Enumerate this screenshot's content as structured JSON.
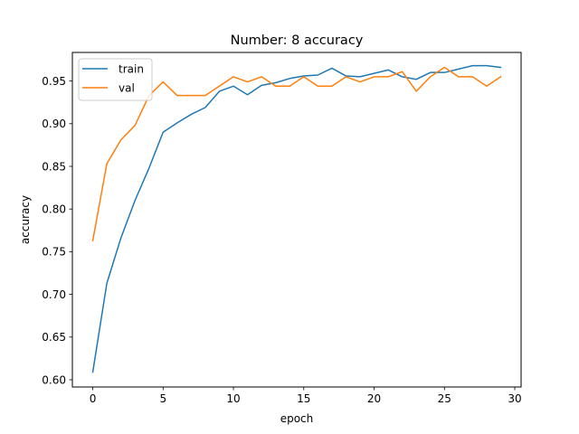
{
  "chart_data": {
    "type": "line",
    "title": "Number: 8 accuracy",
    "xlabel": "epoch",
    "ylabel": "accuracy",
    "xlim": [
      -1.45,
      30.45
    ],
    "ylim": [
      0.5915,
      0.9835
    ],
    "xticks": [
      0,
      5,
      10,
      15,
      20,
      25,
      30
    ],
    "yticks": [
      0.6,
      0.65,
      0.7,
      0.75,
      0.8,
      0.85,
      0.9,
      0.95
    ],
    "ytick_labels": [
      "0.60",
      "0.65",
      "0.70",
      "0.75",
      "0.80",
      "0.85",
      "0.90",
      "0.95"
    ],
    "grid": false,
    "legend_position": "top-left",
    "x": [
      0,
      1,
      2,
      3,
      4,
      5,
      6,
      7,
      8,
      9,
      10,
      11,
      12,
      13,
      14,
      15,
      16,
      17,
      18,
      19,
      20,
      21,
      22,
      23,
      24,
      25,
      26,
      27,
      28,
      29
    ],
    "series": [
      {
        "name": "train",
        "color": "#1f77b4",
        "values": [
          0.609,
          0.713,
          0.766,
          0.81,
          0.848,
          0.89,
          0.901,
          0.911,
          0.919,
          0.938,
          0.944,
          0.934,
          0.945,
          0.948,
          0.953,
          0.956,
          0.957,
          0.965,
          0.956,
          0.955,
          0.959,
          0.963,
          0.955,
          0.952,
          0.96,
          0.96,
          0.964,
          0.968,
          0.968,
          0.966
        ]
      },
      {
        "name": "val",
        "color": "#ff7f0e",
        "values": [
          0.763,
          0.853,
          0.881,
          0.898,
          0.933,
          0.949,
          0.933,
          0.933,
          0.933,
          0.944,
          0.955,
          0.949,
          0.955,
          0.944,
          0.944,
          0.955,
          0.944,
          0.944,
          0.955,
          0.949,
          0.955,
          0.955,
          0.961,
          0.938,
          0.955,
          0.966,
          0.955,
          0.955,
          0.944,
          0.955
        ]
      }
    ]
  }
}
